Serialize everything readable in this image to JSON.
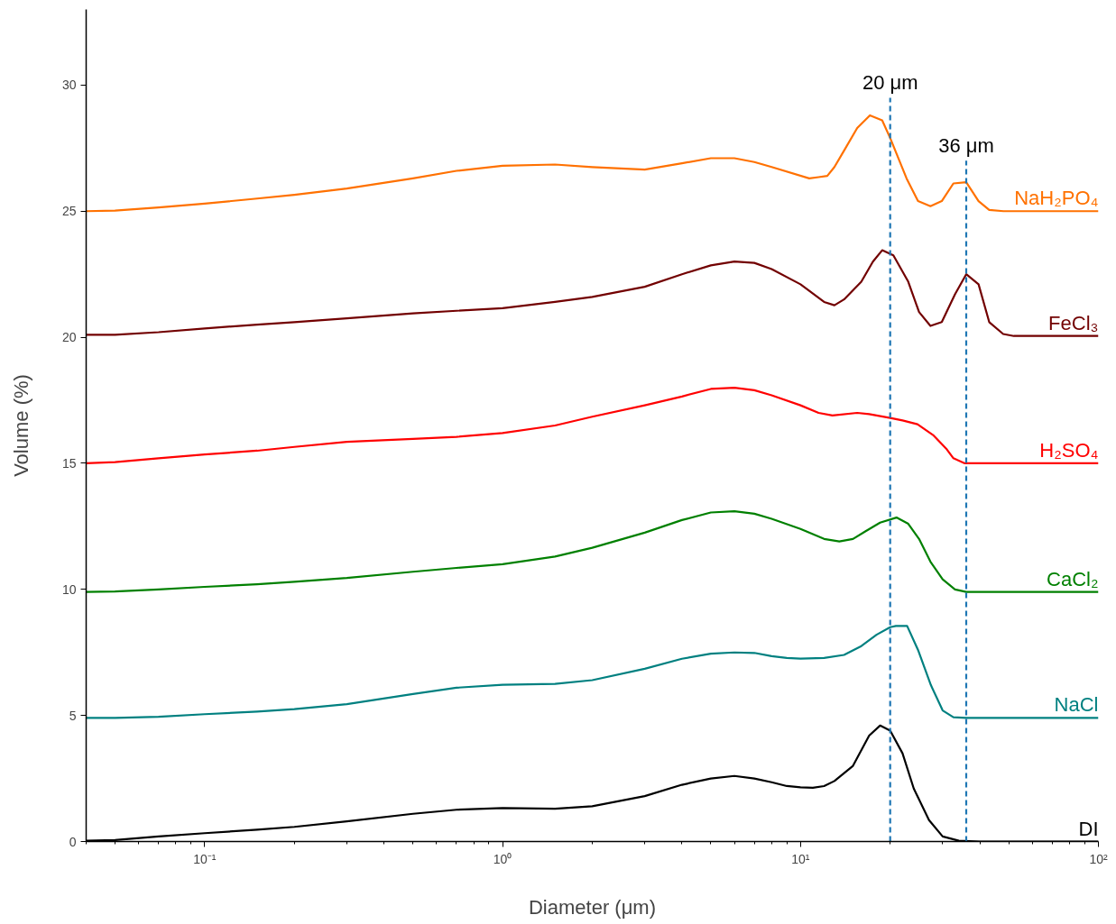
{
  "chart_data": {
    "type": "line",
    "xlabel": "Diameter (μm)",
    "ylabel": "Volume (%)",
    "log": "x",
    "xlim": [
      0.04,
      100
    ],
    "ylim": [
      0,
      33
    ],
    "xticks": [
      {
        "value": 0.1,
        "label": "10⁻¹"
      },
      {
        "value": 1,
        "label": "10⁰"
      },
      {
        "value": 10,
        "label": "10¹"
      },
      {
        "value": 100,
        "label": "10²"
      }
    ],
    "yticks": [
      0,
      5,
      10,
      15,
      20,
      25,
      30
    ],
    "grid": false,
    "marker": "none",
    "line_style": "solid",
    "series": [
      {
        "name": "NaH₂PO₄",
        "color": "#ff7100",
        "x": [
          0.04,
          0.05,
          0.07,
          0.1,
          0.15,
          0.2,
          0.3,
          0.5,
          0.7,
          1,
          1.5,
          2,
          3,
          4,
          5,
          6,
          7,
          8,
          10.7,
          11.5,
          12.3,
          13,
          14,
          15.5,
          17.1,
          18.8,
          20,
          22.7,
          24.8,
          27.3,
          29.8,
          32.6,
          36,
          39.6,
          43,
          48,
          60,
          100
        ],
        "values": [
          25.0,
          25.02,
          25.15,
          25.3,
          25.5,
          25.65,
          25.9,
          26.3,
          26.6,
          26.8,
          26.85,
          26.75,
          26.65,
          26.9,
          27.1,
          27.1,
          26.95,
          26.75,
          26.3,
          26.35,
          26.4,
          26.75,
          27.4,
          28.3,
          28.8,
          28.6,
          27.9,
          26.3,
          25.4,
          25.2,
          25.4,
          26.1,
          26.15,
          25.4,
          25.05,
          25.0,
          25.0,
          25.0
        ]
      },
      {
        "name": "FeCl₃",
        "color": "#720000",
        "x": [
          0.04,
          0.05,
          0.07,
          0.1,
          0.15,
          0.2,
          0.3,
          0.5,
          0.7,
          1,
          1.5,
          2,
          3,
          4,
          5,
          6,
          7,
          8,
          10,
          12,
          13,
          14,
          16,
          17.5,
          18.8,
          20.5,
          23,
          25,
          27.3,
          29.8,
          33,
          36,
          39.6,
          43,
          47.9,
          52,
          100
        ],
        "values": [
          20.1,
          20.1,
          20.2,
          20.35,
          20.5,
          20.6,
          20.75,
          20.95,
          21.05,
          21.15,
          21.4,
          21.6,
          22.0,
          22.5,
          22.85,
          23.0,
          22.95,
          22.7,
          22.1,
          21.4,
          21.27,
          21.5,
          22.2,
          23.0,
          23.45,
          23.25,
          22.2,
          21.0,
          20.45,
          20.6,
          21.7,
          22.5,
          22.1,
          20.6,
          20.13,
          20.05,
          20.05
        ]
      },
      {
        "name": "H₂SO₄",
        "color": "#ff0000",
        "x": [
          0.04,
          0.05,
          0.07,
          0.1,
          0.15,
          0.2,
          0.3,
          0.5,
          0.7,
          1,
          1.5,
          2,
          3,
          4,
          5,
          6,
          7,
          8,
          10,
          11.5,
          12.8,
          15.5,
          17,
          20,
          22,
          24.7,
          28,
          31,
          32.6,
          35.6,
          40,
          100
        ],
        "values": [
          15.0,
          15.05,
          15.2,
          15.35,
          15.5,
          15.65,
          15.85,
          15.97,
          16.05,
          16.2,
          16.5,
          16.85,
          17.3,
          17.65,
          17.95,
          18.0,
          17.9,
          17.7,
          17.3,
          17.0,
          16.9,
          17.0,
          16.95,
          16.8,
          16.7,
          16.55,
          16.1,
          15.55,
          15.2,
          15.0,
          15.0,
          15.0
        ]
      },
      {
        "name": "CaCl₂",
        "color": "#008000",
        "x": [
          0.04,
          0.05,
          0.07,
          0.1,
          0.15,
          0.2,
          0.3,
          0.5,
          0.7,
          1,
          1.5,
          2,
          3,
          4,
          5,
          6,
          7,
          8,
          10,
          12,
          13.5,
          15,
          16.5,
          18.5,
          21,
          23,
          25,
          27.3,
          30,
          33,
          36,
          100
        ],
        "values": [
          9.9,
          9.92,
          10.0,
          10.1,
          10.2,
          10.3,
          10.45,
          10.7,
          10.85,
          11.0,
          11.3,
          11.65,
          12.25,
          12.75,
          13.05,
          13.1,
          13.0,
          12.8,
          12.4,
          12.0,
          11.9,
          12.0,
          12.3,
          12.65,
          12.85,
          12.6,
          12.0,
          11.1,
          10.4,
          10.0,
          9.9,
          9.9
        ]
      },
      {
        "name": "NaCl",
        "color": "#008080",
        "x": [
          0.04,
          0.05,
          0.07,
          0.1,
          0.15,
          0.2,
          0.3,
          0.5,
          0.7,
          1,
          1.5,
          2,
          3,
          4,
          5,
          6,
          7,
          8,
          9,
          10,
          12,
          14,
          16,
          18,
          20,
          20.9,
          22.8,
          24.8,
          27.4,
          30,
          32.6,
          36,
          100
        ],
        "values": [
          4.9,
          4.9,
          4.95,
          5.05,
          5.15,
          5.25,
          5.45,
          5.85,
          6.1,
          6.22,
          6.25,
          6.4,
          6.85,
          7.25,
          7.45,
          7.5,
          7.48,
          7.35,
          7.28,
          7.25,
          7.28,
          7.4,
          7.75,
          8.2,
          8.5,
          8.55,
          8.55,
          7.6,
          6.2,
          5.2,
          4.93,
          4.9,
          4.9
        ]
      },
      {
        "name": "DI",
        "color": "#000000",
        "x": [
          0.04,
          0.05,
          0.07,
          0.1,
          0.15,
          0.2,
          0.3,
          0.5,
          0.7,
          1,
          1.5,
          2,
          3,
          4,
          5,
          6,
          7,
          8,
          9,
          10,
          11,
          12,
          13,
          15,
          17,
          18.5,
          20,
          22,
          24,
          27,
          30,
          34,
          40,
          100
        ],
        "values": [
          0.03,
          0.06,
          0.2,
          0.33,
          0.47,
          0.58,
          0.8,
          1.1,
          1.26,
          1.33,
          1.3,
          1.4,
          1.8,
          2.25,
          2.5,
          2.6,
          2.5,
          2.35,
          2.2,
          2.15,
          2.13,
          2.2,
          2.4,
          3.0,
          4.2,
          4.6,
          4.4,
          3.5,
          2.1,
          0.85,
          0.2,
          0.03,
          0.0,
          0.0
        ]
      }
    ],
    "ref_lines": [
      {
        "axis": "x",
        "value": 20,
        "color": "#1f77b4",
        "line_style": "dashed"
      },
      {
        "axis": "x",
        "value": 36,
        "color": "#1f77b4",
        "line_style": "dashed"
      }
    ],
    "annotations": [
      {
        "text": "20 μm",
        "x": 20,
        "y": 29.5
      },
      {
        "text": "36 μm",
        "x": 36,
        "y": 27.0
      }
    ]
  }
}
